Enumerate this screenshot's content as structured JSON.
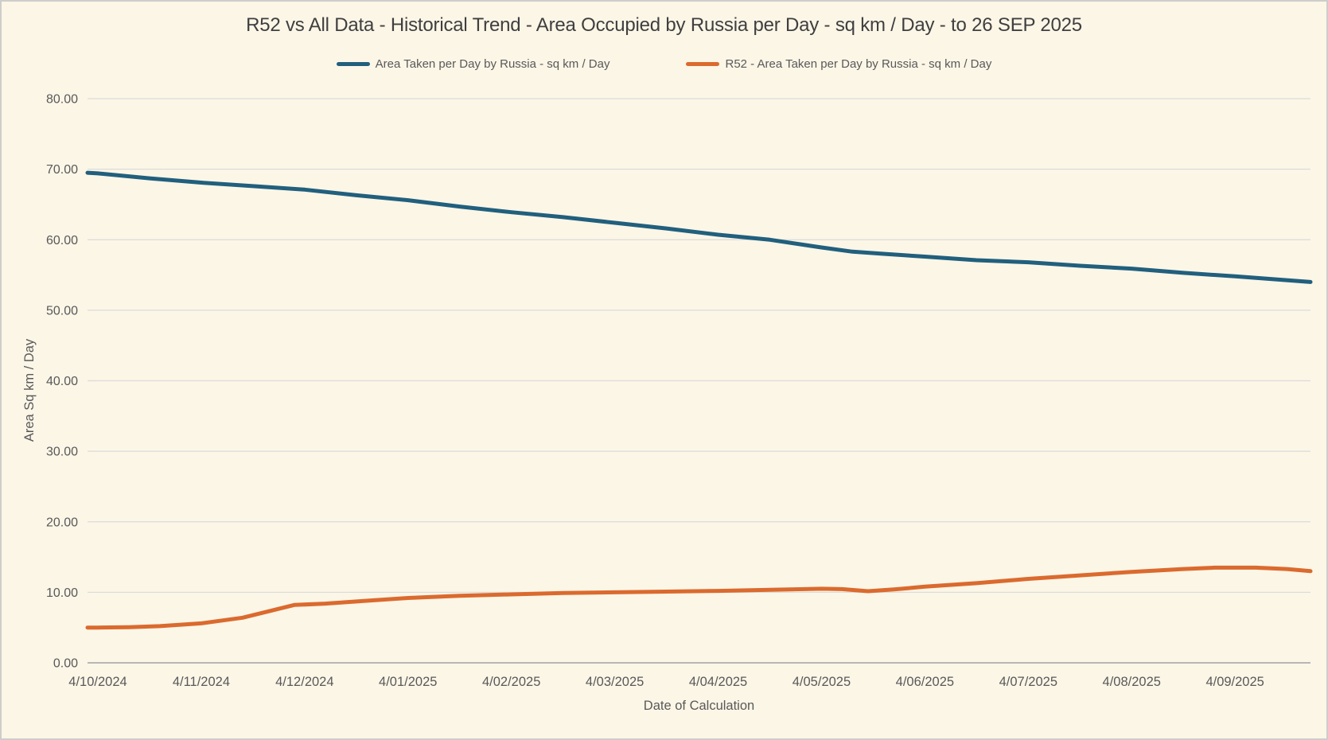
{
  "colors": {
    "background": "#FCF6E7",
    "frame_border": "#CDCDCB",
    "gridline": "#DBDBD8",
    "axis_line": "#B7B7B4",
    "tick_text": "#595959",
    "title_text": "#3F3F3F",
    "series_all_data": "#215F7D",
    "series_r52": "#DB6A2E"
  },
  "chart_data": {
    "type": "line",
    "title": "R52 vs All Data - Historical Trend - Area Occupied by Russia per Day - sq km / Day - to 26 SEP 2025",
    "xlabel": "Date of Calculation",
    "ylabel": "Area Sq km / Day",
    "x_tick_labels": [
      "4/10/2024",
      "4/11/2024",
      "4/12/2024",
      "4/01/2025",
      "4/02/2025",
      "4/03/2025",
      "4/04/2025",
      "4/05/2025",
      "4/06/2025",
      "4/07/2025",
      "4/08/2025",
      "4/09/2025"
    ],
    "x_domain": [
      -0.1,
      11.73
    ],
    "x_domain_note": "x measured in monthly-tick index units: 0 = 4/10/2024, 11 = 4/09/2025, 11.73 = series end at 26 SEP 2025",
    "ylim": [
      0,
      80
    ],
    "y_tick_step": 10,
    "y_tick_labels": [
      "0.00",
      "10.00",
      "20.00",
      "30.00",
      "40.00",
      "50.00",
      "60.00",
      "70.00",
      "80.00"
    ],
    "grid": "horizontal gridlines on",
    "legend_position": "top center",
    "series": [
      {
        "name": "Area Taken per Day by Russia - sq km / Day",
        "color": "#215F7D",
        "points": [
          [
            -0.1,
            69.5
          ],
          [
            0,
            69.4
          ],
          [
            0.5,
            68.7
          ],
          [
            1,
            68.1
          ],
          [
            1.5,
            67.6
          ],
          [
            2,
            67.1
          ],
          [
            2.5,
            66.3
          ],
          [
            3,
            65.6
          ],
          [
            3.5,
            64.7
          ],
          [
            4,
            63.9
          ],
          [
            4.5,
            63.2
          ],
          [
            5,
            62.4
          ],
          [
            5.5,
            61.6
          ],
          [
            6,
            60.7
          ],
          [
            6.5,
            60.0
          ],
          [
            7,
            58.9
          ],
          [
            7.3,
            58.3
          ],
          [
            7.6,
            58.0
          ],
          [
            8,
            57.6
          ],
          [
            8.5,
            57.1
          ],
          [
            9,
            56.8
          ],
          [
            9.5,
            56.3
          ],
          [
            10,
            55.9
          ],
          [
            10.5,
            55.3
          ],
          [
            11,
            54.8
          ],
          [
            11.73,
            54.0
          ]
        ],
        "values_at_month_ticks": [
          69.4,
          68.1,
          67.1,
          65.6,
          63.9,
          62.4,
          60.7,
          58.9,
          57.6,
          56.8,
          55.9,
          54.8
        ],
        "end_value_26_sep_2025": 54.0
      },
      {
        "name": "R52 - Area Taken per Day by Russia - sq km / Day",
        "color": "#DB6A2E",
        "points": [
          [
            -0.1,
            5.0
          ],
          [
            0,
            5.0
          ],
          [
            0.3,
            5.05
          ],
          [
            0.6,
            5.2
          ],
          [
            1,
            5.6
          ],
          [
            1.4,
            6.4
          ],
          [
            1.9,
            8.2
          ],
          [
            2.2,
            8.4
          ],
          [
            2.6,
            8.8
          ],
          [
            3,
            9.2
          ],
          [
            3.5,
            9.5
          ],
          [
            4,
            9.7
          ],
          [
            4.5,
            9.9
          ],
          [
            5,
            10.0
          ],
          [
            5.5,
            10.1
          ],
          [
            6,
            10.2
          ],
          [
            6.5,
            10.35
          ],
          [
            7,
            10.5
          ],
          [
            7.2,
            10.45
          ],
          [
            7.45,
            10.15
          ],
          [
            7.7,
            10.4
          ],
          [
            8,
            10.8
          ],
          [
            8.5,
            11.3
          ],
          [
            9,
            11.9
          ],
          [
            9.5,
            12.4
          ],
          [
            10,
            12.9
          ],
          [
            10.5,
            13.3
          ],
          [
            10.8,
            13.5
          ],
          [
            11.2,
            13.5
          ],
          [
            11.5,
            13.3
          ],
          [
            11.73,
            13.0
          ]
        ],
        "values_at_month_ticks": [
          5.0,
          5.6,
          8.3,
          9.2,
          9.7,
          10.0,
          10.2,
          10.5,
          10.8,
          11.9,
          12.9,
          13.5
        ],
        "end_value_26_sep_2025": 13.0
      }
    ]
  }
}
